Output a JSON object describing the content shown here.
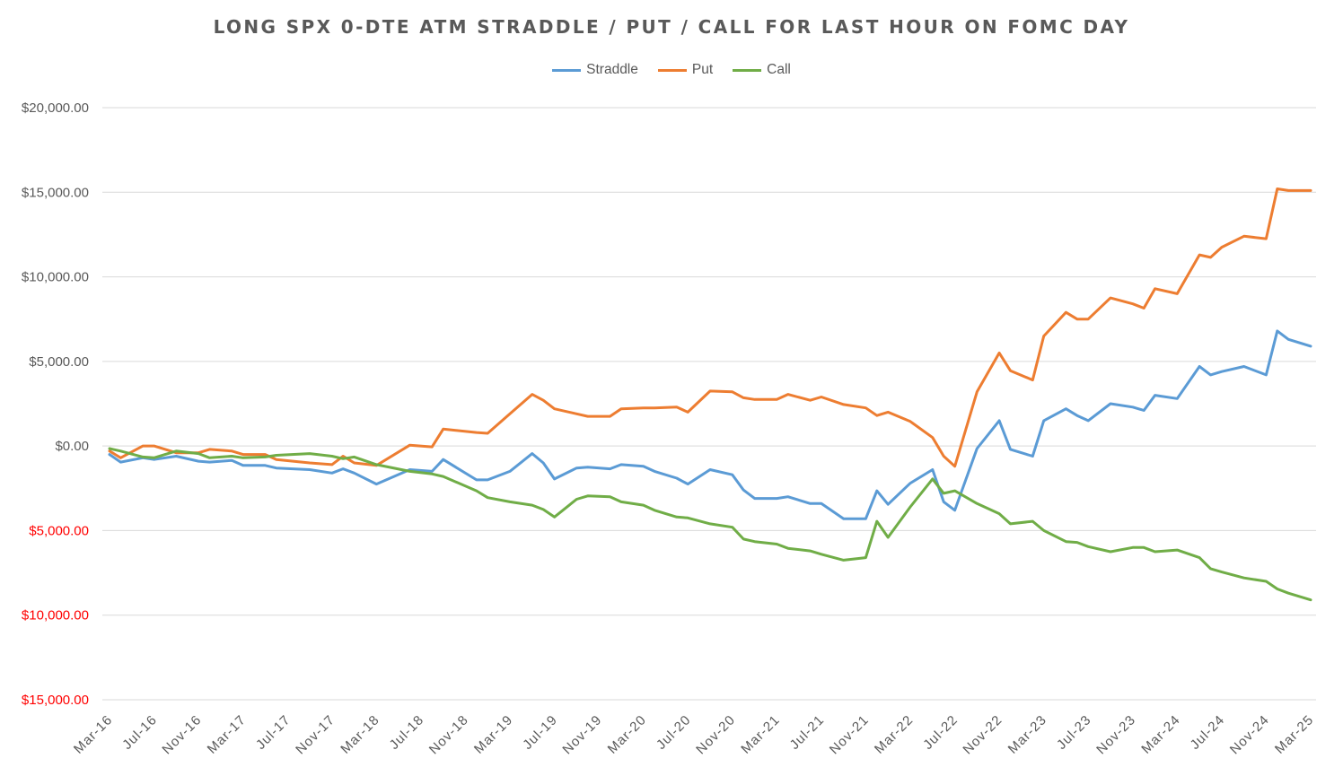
{
  "chart_data": {
    "type": "line",
    "title": "LONG SPX 0-DTE ATM STRADDLE / PUT / CALL FOR LAST HOUR ON FOMC DAY",
    "xlabel": "",
    "ylabel": "",
    "ylim": [
      -15000,
      20000
    ],
    "y_ticks": [
      20000,
      15000,
      10000,
      5000,
      0,
      -5000,
      -10000,
      -15000
    ],
    "y_tick_labels": [
      "$20,000.00",
      "$15,000.00",
      "$10,000.00",
      "$5,000.00",
      "$0.00",
      "$5,000.00",
      "$10,000.00",
      "$15,000.00"
    ],
    "x_tick_labels": [
      "Mar-16",
      "Jul-16",
      "Nov-16",
      "Mar-17",
      "Jul-17",
      "Nov-17",
      "Mar-18",
      "Jul-18",
      "Nov-18",
      "Mar-19",
      "Jul-19",
      "Nov-19",
      "Mar-20",
      "Jul-20",
      "Nov-20",
      "Mar-21",
      "Jul-21",
      "Nov-21",
      "Mar-22",
      "Jul-22",
      "Nov-22",
      "Mar-23",
      "Jul-23",
      "Nov-23",
      "Mar-24",
      "Jul-24",
      "Nov-24",
      "Mar-25"
    ],
    "grid": "horizontal",
    "legend_position": "top",
    "x_start": "Mar-16",
    "x_end": "Mar-25",
    "series": [
      {
        "name": "Straddle",
        "color": "#5b9bd5",
        "points": [
          [
            "Mar-16",
            -500
          ],
          [
            "Apr-16",
            -950
          ],
          [
            "Jun-16",
            -700
          ],
          [
            "Jul-16",
            -800
          ],
          [
            "Sep-16",
            -600
          ],
          [
            "Nov-16",
            -900
          ],
          [
            "Dec-16",
            -950
          ],
          [
            "Feb-17",
            -850
          ],
          [
            "Mar-17",
            -1150
          ],
          [
            "May-17",
            -1150
          ],
          [
            "Jun-17",
            -1300
          ],
          [
            "Sep-17",
            -1400
          ],
          [
            "Nov-17",
            -1600
          ],
          [
            "Dec-17",
            -1350
          ],
          [
            "Jan-18",
            -1600
          ],
          [
            "Mar-18",
            -2250
          ],
          [
            "Jun-18",
            -1400
          ],
          [
            "Aug-18",
            -1500
          ],
          [
            "Sep-18",
            -800
          ],
          [
            "Dec-18",
            -2000
          ],
          [
            "Jan-19",
            -2000
          ],
          [
            "Mar-19",
            -1500
          ],
          [
            "May-19",
            -450
          ],
          [
            "Jun-19",
            -1000
          ],
          [
            "Jul-19",
            -1950
          ],
          [
            "Sep-19",
            -1300
          ],
          [
            "Oct-19",
            -1250
          ],
          [
            "Dec-19",
            -1350
          ],
          [
            "Jan-20",
            -1100
          ],
          [
            "Mar-20",
            -1200
          ],
          [
            "Apr-20",
            -1500
          ],
          [
            "Jun-20",
            -1900
          ],
          [
            "Jul-20",
            -2250
          ],
          [
            "Sep-20",
            -1400
          ],
          [
            "Nov-20",
            -1700
          ],
          [
            "Dec-20",
            -2600
          ],
          [
            "Jan-21",
            -3100
          ],
          [
            "Mar-21",
            -3100
          ],
          [
            "Apr-21",
            -3000
          ],
          [
            "Jun-21",
            -3400
          ],
          [
            "Jul-21",
            -3400
          ],
          [
            "Sep-21",
            -4300
          ],
          [
            "Nov-21",
            -4300
          ],
          [
            "Dec-21",
            -2650
          ],
          [
            "Jan-22",
            -3450
          ],
          [
            "Mar-22",
            -2200
          ],
          [
            "May-22",
            -1400
          ],
          [
            "Jun-22",
            -3300
          ],
          [
            "Jul-22",
            -3800
          ],
          [
            "Sep-22",
            -150
          ],
          [
            "Nov-22",
            1500
          ],
          [
            "Dec-22",
            -200
          ],
          [
            "Feb-23",
            -600
          ],
          [
            "Mar-23",
            1500
          ],
          [
            "May-23",
            2200
          ],
          [
            "Jun-23",
            1800
          ],
          [
            "Jul-23",
            1500
          ],
          [
            "Sep-23",
            2500
          ],
          [
            "Nov-23",
            2300
          ],
          [
            "Dec-23",
            2100
          ],
          [
            "Jan-24",
            3000
          ],
          [
            "Mar-24",
            2800
          ],
          [
            "May-24",
            4700
          ],
          [
            "Jun-24",
            4200
          ],
          [
            "Jul-24",
            4400
          ],
          [
            "Sep-24",
            4700
          ],
          [
            "Nov-24",
            4200
          ],
          [
            "Dec-24",
            6800
          ],
          [
            "Jan-25",
            6300
          ],
          [
            "Mar-25",
            5900
          ]
        ]
      },
      {
        "name": "Put",
        "color": "#ed7d31",
        "points": [
          [
            "Mar-16",
            -300
          ],
          [
            "Apr-16",
            -700
          ],
          [
            "Jun-16",
            0
          ],
          [
            "Jul-16",
            0
          ],
          [
            "Sep-16",
            -400
          ],
          [
            "Nov-16",
            -400
          ],
          [
            "Dec-16",
            -200
          ],
          [
            "Feb-17",
            -300
          ],
          [
            "Mar-17",
            -500
          ],
          [
            "May-17",
            -500
          ],
          [
            "Jun-17",
            -800
          ],
          [
            "Sep-17",
            -1000
          ],
          [
            "Nov-17",
            -1100
          ],
          [
            "Dec-17",
            -600
          ],
          [
            "Jan-18",
            -1000
          ],
          [
            "Mar-18",
            -1150
          ],
          [
            "Jun-18",
            50
          ],
          [
            "Aug-18",
            -50
          ],
          [
            "Sep-18",
            1000
          ],
          [
            "Dec-18",
            800
          ],
          [
            "Jan-19",
            750
          ],
          [
            "Mar-19",
            1900
          ],
          [
            "May-19",
            3050
          ],
          [
            "Jun-19",
            2700
          ],
          [
            "Jul-19",
            2200
          ],
          [
            "Sep-19",
            1900
          ],
          [
            "Oct-19",
            1750
          ],
          [
            "Dec-19",
            1750
          ],
          [
            "Jan-20",
            2200
          ],
          [
            "Mar-20",
            2250
          ],
          [
            "Apr-20",
            2250
          ],
          [
            "Jun-20",
            2300
          ],
          [
            "Jul-20",
            2000
          ],
          [
            "Sep-20",
            3250
          ],
          [
            "Nov-20",
            3200
          ],
          [
            "Dec-20",
            2850
          ],
          [
            "Jan-21",
            2750
          ],
          [
            "Mar-21",
            2750
          ],
          [
            "Apr-21",
            3050
          ],
          [
            "Jun-21",
            2700
          ],
          [
            "Jul-21",
            2900
          ],
          [
            "Sep-21",
            2450
          ],
          [
            "Nov-21",
            2250
          ],
          [
            "Dec-21",
            1800
          ],
          [
            "Jan-22",
            2000
          ],
          [
            "Mar-22",
            1450
          ],
          [
            "May-22",
            500
          ],
          [
            "Jun-22",
            -600
          ],
          [
            "Jul-22",
            -1200
          ],
          [
            "Sep-22",
            3200
          ],
          [
            "Nov-22",
            5500
          ],
          [
            "Dec-22",
            4450
          ],
          [
            "Feb-23",
            3900
          ],
          [
            "Mar-23",
            6500
          ],
          [
            "May-23",
            7900
          ],
          [
            "Jun-23",
            7500
          ],
          [
            "Jul-23",
            7500
          ],
          [
            "Sep-23",
            8750
          ],
          [
            "Nov-23",
            8400
          ],
          [
            "Dec-23",
            8150
          ],
          [
            "Jan-24",
            9300
          ],
          [
            "Mar-24",
            9000
          ],
          [
            "May-24",
            11300
          ],
          [
            "Jun-24",
            11150
          ],
          [
            "Jul-24",
            11750
          ],
          [
            "Sep-24",
            12400
          ],
          [
            "Nov-24",
            12250
          ],
          [
            "Dec-24",
            15200
          ],
          [
            "Jan-25",
            15100
          ],
          [
            "Mar-25",
            15100
          ]
        ]
      },
      {
        "name": "Call",
        "color": "#70ad47",
        "points": [
          [
            "Mar-16",
            -150
          ],
          [
            "Apr-16",
            -300
          ],
          [
            "Jun-16",
            -650
          ],
          [
            "Jul-16",
            -700
          ],
          [
            "Sep-16",
            -300
          ],
          [
            "Nov-16",
            -450
          ],
          [
            "Dec-16",
            -700
          ],
          [
            "Feb-17",
            -600
          ],
          [
            "Mar-17",
            -700
          ],
          [
            "May-17",
            -650
          ],
          [
            "Jun-17",
            -550
          ],
          [
            "Sep-17",
            -450
          ],
          [
            "Nov-17",
            -600
          ],
          [
            "Dec-17",
            -750
          ],
          [
            "Jan-18",
            -650
          ],
          [
            "Mar-18",
            -1100
          ],
          [
            "Jun-18",
            -1500
          ],
          [
            "Aug-18",
            -1650
          ],
          [
            "Sep-18",
            -1800
          ],
          [
            "Dec-18",
            -2650
          ],
          [
            "Jan-19",
            -3050
          ],
          [
            "Mar-19",
            -3300
          ],
          [
            "May-19",
            -3500
          ],
          [
            "Jun-19",
            -3750
          ],
          [
            "Jul-19",
            -4200
          ],
          [
            "Sep-19",
            -3150
          ],
          [
            "Oct-19",
            -2950
          ],
          [
            "Dec-19",
            -3000
          ],
          [
            "Jan-20",
            -3300
          ],
          [
            "Mar-20",
            -3500
          ],
          [
            "Apr-20",
            -3800
          ],
          [
            "Jun-20",
            -4200
          ],
          [
            "Jul-20",
            -4250
          ],
          [
            "Sep-20",
            -4600
          ],
          [
            "Nov-20",
            -4800
          ],
          [
            "Dec-20",
            -5500
          ],
          [
            "Jan-21",
            -5650
          ],
          [
            "Mar-21",
            -5800
          ],
          [
            "Apr-21",
            -6050
          ],
          [
            "Jun-21",
            -6200
          ],
          [
            "Jul-21",
            -6400
          ],
          [
            "Sep-21",
            -6750
          ],
          [
            "Nov-21",
            -6600
          ],
          [
            "Dec-21",
            -4450
          ],
          [
            "Jan-22",
            -5400
          ],
          [
            "Mar-22",
            -3600
          ],
          [
            "May-22",
            -1950
          ],
          [
            "Jun-22",
            -2800
          ],
          [
            "Jul-22",
            -2650
          ],
          [
            "Sep-22",
            -3400
          ],
          [
            "Nov-22",
            -4000
          ],
          [
            "Dec-22",
            -4600
          ],
          [
            "Feb-23",
            -4450
          ],
          [
            "Mar-23",
            -5000
          ],
          [
            "May-23",
            -5650
          ],
          [
            "Jun-23",
            -5700
          ],
          [
            "Jul-23",
            -5950
          ],
          [
            "Sep-23",
            -6250
          ],
          [
            "Nov-23",
            -6000
          ],
          [
            "Dec-23",
            -6000
          ],
          [
            "Jan-24",
            -6250
          ],
          [
            "Mar-24",
            -6150
          ],
          [
            "May-24",
            -6600
          ],
          [
            "Jun-24",
            -7250
          ],
          [
            "Jul-24",
            -7450
          ],
          [
            "Sep-24",
            -7800
          ],
          [
            "Nov-24",
            -8000
          ],
          [
            "Dec-24",
            -8450
          ],
          [
            "Jan-25",
            -8700
          ],
          [
            "Mar-25",
            -9100
          ]
        ]
      }
    ]
  }
}
